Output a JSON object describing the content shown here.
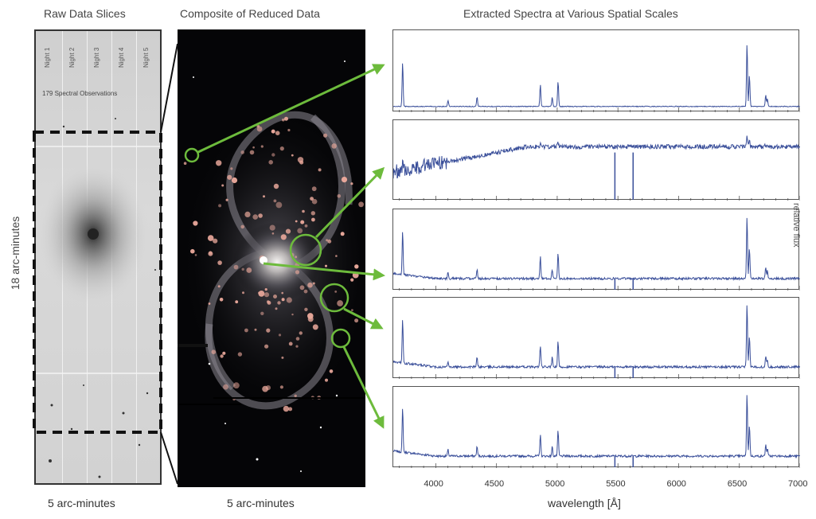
{
  "headers": {
    "raw_title": "Raw Data Slices",
    "composite_title": "Composite of Reduced Data",
    "spectra_title": "Extracted Spectra at Various Spatial Scales"
  },
  "raw_panel": {
    "nights": [
      "Night 1",
      "Night 2",
      "Night 3",
      "Night 4",
      "Night 5"
    ],
    "observations_label": "179 Spectral Observations",
    "y_label": "18 arc-minutes"
  },
  "footers": {
    "raw_width": "5 arc-minutes",
    "composite_width": "5 arc-minutes",
    "spectra_xlabel": "wavelength [Å]"
  },
  "right_label": "relative flux",
  "colors": {
    "arrow": "#6dbb3c",
    "spectrum": "#3a4f9a",
    "frame": "#333333"
  },
  "chart_data": {
    "type": "line",
    "xlabel": "wavelength [Å]",
    "xlim": [
      3650,
      7000
    ],
    "xticks": [
      4000,
      4500,
      5000,
      5500,
      6000,
      6500,
      7000
    ],
    "panels": 5
  }
}
